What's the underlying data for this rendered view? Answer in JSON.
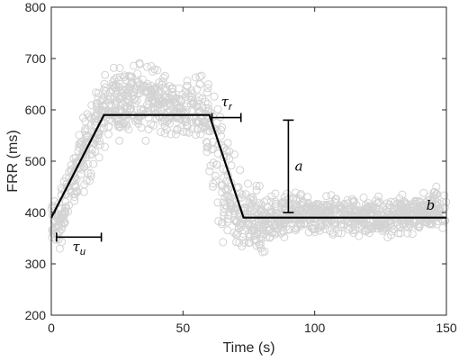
{
  "chart_data": {
    "type": "scatter",
    "xlabel": "Time (s)",
    "ylabel": "FRR (ms)",
    "xlim": [
      0,
      150
    ],
    "ylim": [
      200,
      800
    ],
    "x_ticks": [
      0,
      50,
      100,
      150
    ],
    "y_ticks": [
      200,
      300,
      400,
      500,
      600,
      700,
      800
    ],
    "grid": false,
    "colors": {
      "scatter": "#d3d3d3",
      "model": "#000000",
      "axis": "#262626"
    },
    "model_fit": {
      "x": [
        0,
        20,
        60,
        73,
        150
      ],
      "y": [
        390,
        590,
        590,
        390,
        390
      ]
    },
    "scatter_envelope": {
      "x": [
        0,
        3,
        6,
        10,
        15,
        20,
        25,
        30,
        35,
        40,
        45,
        50,
        55,
        58,
        62,
        65,
        70,
        75,
        80,
        85,
        90,
        100,
        110,
        120,
        130,
        140,
        150
      ],
      "low": [
        330,
        300,
        340,
        390,
        440,
        500,
        510,
        520,
        520,
        525,
        530,
        520,
        500,
        490,
        340,
        300,
        290,
        300,
        310,
        330,
        340,
        345,
        345,
        345,
        345,
        345,
        345
      ],
      "high": [
        440,
        470,
        520,
        580,
        650,
        700,
        715,
        720,
        715,
        700,
        690,
        670,
        690,
        710,
        700,
        620,
        520,
        470,
        460,
        450,
        450,
        450,
        445,
        440,
        445,
        455,
        465
      ]
    },
    "annotations": [
      {
        "label": "τ",
        "sub": "u",
        "x1": 2,
        "x2": 19,
        "y": 352,
        "label_x": 10.5,
        "label_y": 325
      },
      {
        "label": "τ",
        "sub": "r",
        "x1": 61,
        "x2": 72,
        "y": 585,
        "label_x": 66.5,
        "label_y": 607
      },
      {
        "label": "a",
        "x": 90,
        "y1": 400,
        "y2": 580,
        "label_x": 94,
        "label_y": 490
      },
      {
        "label": "b",
        "x": 144,
        "y": 405
      }
    ]
  }
}
